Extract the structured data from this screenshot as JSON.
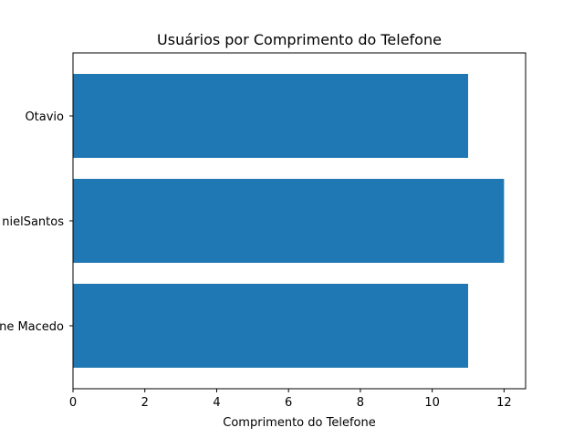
{
  "chart_data": {
    "type": "bar",
    "orientation": "horizontal",
    "title": "Usuários por Comprimento do Telefone",
    "xlabel": "Comprimento do Telefone",
    "ylabel": "",
    "categories": [
      "ne Macedo",
      "nielSantos",
      "Otavio"
    ],
    "values": [
      11,
      12,
      11
    ],
    "xlim": [
      0,
      12.6
    ],
    "xticks": [
      0,
      2,
      4,
      6,
      8,
      10,
      12
    ],
    "grid": false,
    "bar_color": "#1f77b4"
  }
}
